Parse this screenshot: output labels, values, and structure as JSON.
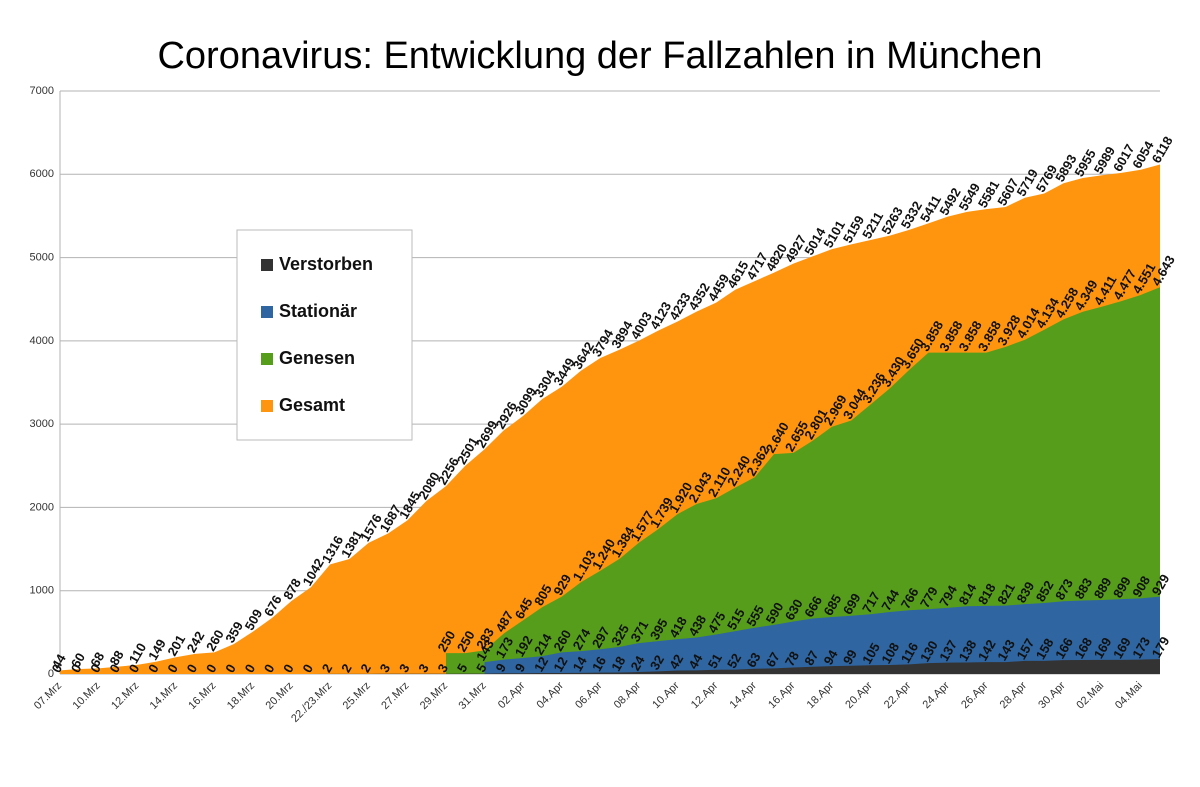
{
  "chart_data": {
    "type": "area",
    "title": "Coronavirus: Entwicklung der Fallzahlen in München",
    "categories": [
      "07.Mrz",
      null,
      "10.Mrz",
      null,
      "12.Mrz",
      null,
      "14.Mrz",
      null,
      "16.Mrz",
      null,
      "18.Mrz",
      null,
      "20.Mrz",
      null,
      "22./23.Mrz",
      null,
      "25.Mrz",
      null,
      "27.Mrz",
      null,
      "29.Mrz",
      null,
      "31.Mrz",
      null,
      "02.Apr",
      null,
      "04.Apr",
      null,
      "06.Apr",
      null,
      "08.Apr",
      null,
      "10.Apr",
      null,
      "12.Apr",
      null,
      "14.Apr",
      null,
      "16.Apr",
      null,
      "18.Apr",
      null,
      "20.Apr",
      null,
      "22.Apr",
      null,
      "24.Apr",
      null,
      "26.Apr",
      null,
      "28.Apr",
      null,
      "30.Apr",
      null,
      "02.Mai",
      null,
      "04.Mai",
      null
    ],
    "series": [
      {
        "name": "Verstorben",
        "color": "#333333",
        "values": [
          0,
          0,
          0,
          0,
          0,
          0,
          0,
          0,
          0,
          0,
          0,
          0,
          0,
          0,
          2,
          2,
          2,
          3,
          3,
          3,
          3,
          5,
          5,
          9,
          9,
          12,
          12,
          14,
          16,
          18,
          24,
          32,
          42,
          44,
          51,
          52,
          63,
          67,
          78,
          87,
          94,
          99,
          105,
          108,
          116,
          130,
          137,
          138,
          142,
          143,
          157,
          158,
          166,
          168,
          169,
          169,
          173,
          179
        ]
      },
      {
        "name": "Stationär",
        "color": "#2f65a0",
        "values": [
          null,
          null,
          null,
          null,
          null,
          null,
          null,
          null,
          null,
          null,
          null,
          null,
          null,
          null,
          null,
          null,
          null,
          null,
          null,
          null,
          null,
          null,
          143,
          173,
          192,
          214,
          260,
          274,
          297,
          325,
          371,
          395,
          418,
          438,
          475,
          515,
          555,
          590,
          630,
          666,
          685,
          699,
          717,
          744,
          766,
          779,
          794,
          814,
          818,
          821,
          839,
          852,
          873,
          883,
          889,
          899,
          908,
          929
        ]
      },
      {
        "name": "Genesen",
        "color": "#579d1c",
        "values": [
          null,
          null,
          null,
          null,
          null,
          null,
          null,
          null,
          null,
          null,
          null,
          null,
          null,
          null,
          null,
          null,
          null,
          null,
          null,
          null,
          250,
          250,
          283,
          487,
          645,
          805,
          929,
          1103,
          1240,
          1384,
          1577,
          1739,
          1920,
          2043,
          2110,
          2240,
          2362,
          2640,
          2655,
          2801,
          2969,
          3044,
          3236,
          3430,
          3650,
          3858,
          3858,
          3858,
          3858,
          3928,
          4014,
          4134,
          4258,
          4349,
          4411,
          4477,
          4551,
          4643
        ],
        "value_labels": [
          null,
          null,
          null,
          null,
          null,
          null,
          null,
          null,
          null,
          null,
          null,
          null,
          null,
          null,
          null,
          null,
          null,
          null,
          null,
          null,
          "250",
          "250",
          "283",
          "487",
          "645",
          "805",
          "929",
          "1.103",
          "1.240",
          "1.384",
          "1.577",
          "1.739",
          "1.920",
          "2.043",
          "2.110",
          "2.240",
          "2.362",
          "2.640",
          "2.655",
          "2.801",
          "2.969",
          "3.044",
          "3.236",
          "3.430",
          "3.650",
          "3.858",
          "3.858",
          "3.858",
          "3.858",
          "3.928",
          "4.014",
          "4.134",
          "4.258",
          "4.349",
          "4.411",
          "4.477",
          "4.551",
          "4.643"
        ]
      },
      {
        "name": "Gesamt",
        "color": "#ff950e",
        "values": [
          44,
          60,
          68,
          88,
          110,
          149,
          201,
          242,
          260,
          359,
          509,
          676,
          878,
          1042,
          1316,
          1381,
          1576,
          1687,
          1845,
          2080,
          2256,
          2501,
          2699,
          2926,
          3099,
          3304,
          3449,
          3642,
          3794,
          3894,
          4003,
          4123,
          4233,
          4352,
          4459,
          4615,
          4717,
          4820,
          4927,
          5014,
          5101,
          5159,
          5211,
          5263,
          5332,
          5411,
          5492,
          5549,
          5581,
          5607,
          5719,
          5769,
          5893,
          5955,
          5989,
          6017,
          6054,
          6118
        ]
      }
    ],
    "ylim": [
      0,
      7000
    ],
    "yticks": [
      0,
      1000,
      2000,
      3000,
      4000,
      5000,
      6000,
      7000
    ],
    "grid": true
  }
}
